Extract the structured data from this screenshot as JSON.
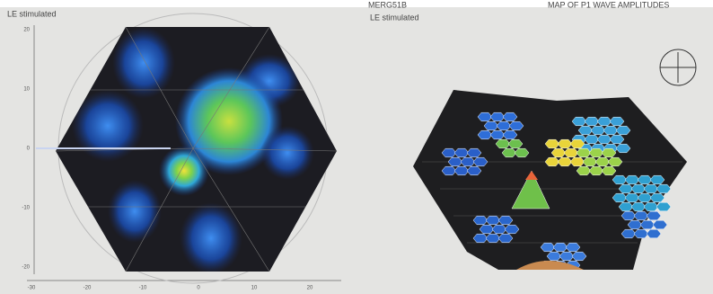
{
  "header": {
    "left_label": "LE stimulated",
    "center_title": "MERG51B",
    "right_title": "MAP OF P1 WAVE AMPLITUDES"
  },
  "left_plot": {
    "label": "LE stimulated",
    "y_ticks": [
      "20",
      "10",
      "0",
      "-10",
      "-20"
    ],
    "x_ticks": [
      "-30",
      "-20",
      "-10",
      "0",
      "10",
      "20"
    ]
  },
  "right_plot": {
    "label": "LE stimulated"
  }
}
